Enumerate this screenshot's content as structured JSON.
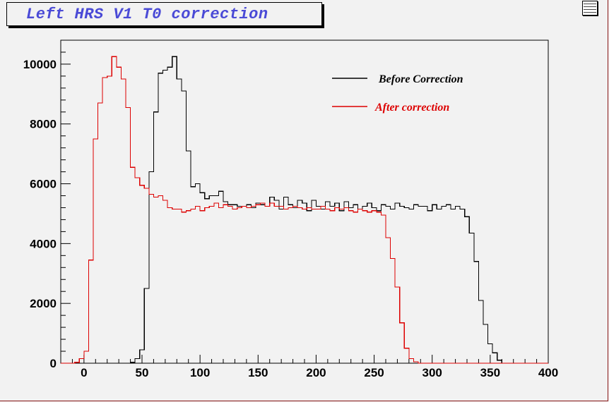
{
  "title": "Left HRS V1 T0 correction",
  "chart_data": {
    "type": "line",
    "title": "Left HRS V1 T0 correction",
    "xlabel": "",
    "ylabel": "",
    "xlim": [
      -20,
      400
    ],
    "ylim": [
      0,
      10800
    ],
    "x_ticks": [
      0,
      50,
      100,
      150,
      200,
      250,
      300,
      350,
      400
    ],
    "y_ticks": [
      0,
      2000,
      4000,
      6000,
      8000,
      10000
    ],
    "x_tick_labels": [
      "0",
      "50",
      "100",
      "150",
      "200",
      "250",
      "300",
      "350",
      "400"
    ],
    "y_tick_labels": [
      "0",
      "2000",
      "4000",
      "6000",
      "8000",
      "10000"
    ],
    "grid": false,
    "legend_position": "top-right",
    "bin_width": 4,
    "series": [
      {
        "name": "Before Correction",
        "color": "#000000",
        "x": [
          0,
          4,
          8,
          12,
          16,
          20,
          24,
          28,
          32,
          36,
          40,
          44,
          48,
          52,
          56,
          60,
          64,
          68,
          72,
          76,
          80,
          84,
          88,
          92,
          96,
          100,
          104,
          108,
          112,
          116,
          120,
          124,
          128,
          132,
          136,
          140,
          144,
          148,
          152,
          156,
          160,
          164,
          168,
          172,
          176,
          180,
          184,
          188,
          192,
          196,
          200,
          204,
          208,
          212,
          216,
          220,
          224,
          228,
          232,
          236,
          240,
          244,
          248,
          252,
          256,
          260,
          264,
          268,
          272,
          276,
          280,
          284,
          288,
          292,
          296,
          300,
          304,
          308,
          312,
          316,
          320,
          324,
          328,
          332,
          336,
          340,
          344,
          348,
          352,
          356,
          360,
          364,
          368,
          372,
          376,
          380,
          384,
          388,
          392,
          396
        ],
        "values": [
          0,
          0,
          0,
          0,
          0,
          0,
          0,
          0,
          0,
          0,
          30,
          150,
          450,
          2500,
          6400,
          8400,
          9700,
          9800,
          9900,
          10250,
          9500,
          9100,
          7100,
          5900,
          6000,
          5700,
          5500,
          5600,
          5600,
          5750,
          5400,
          5300,
          5300,
          5250,
          5250,
          5300,
          5200,
          5350,
          5300,
          5250,
          5550,
          5450,
          5150,
          5550,
          5300,
          5200,
          5450,
          5350,
          5100,
          5450,
          5250,
          5150,
          5400,
          5250,
          5350,
          5100,
          5400,
          5200,
          5300,
          5150,
          5250,
          5350,
          5200,
          5100,
          5300,
          5250,
          5150,
          5350,
          5250,
          5200,
          5150,
          5300,
          5250,
          5250,
          5100,
          5300,
          5150,
          5250,
          5300,
          5150,
          5250,
          5150,
          4900,
          4350,
          3400,
          2100,
          1300,
          650,
          350,
          100,
          0,
          0,
          0,
          0,
          0,
          0,
          0,
          0,
          0,
          0
        ]
      },
      {
        "name": "After correction",
        "color": "#dd0000",
        "x": [
          -20,
          -16,
          -12,
          -8,
          -4,
          0,
          4,
          8,
          12,
          16,
          20,
          24,
          28,
          32,
          36,
          40,
          44,
          48,
          52,
          56,
          60,
          64,
          68,
          72,
          76,
          80,
          84,
          88,
          92,
          96,
          100,
          104,
          108,
          112,
          116,
          120,
          124,
          128,
          132,
          136,
          140,
          144,
          148,
          152,
          156,
          160,
          164,
          168,
          172,
          176,
          180,
          184,
          188,
          192,
          196,
          200,
          204,
          208,
          212,
          216,
          220,
          224,
          228,
          232,
          236,
          240,
          244,
          248,
          252,
          256,
          260,
          264,
          268,
          272,
          276,
          280,
          284,
          288,
          292,
          296,
          300,
          304,
          308,
          312,
          316,
          320,
          324,
          328,
          332,
          336,
          340,
          344,
          348,
          352,
          356,
          360,
          364,
          368,
          372,
          376,
          380,
          384,
          388,
          392,
          396
        ],
        "values": [
          0,
          0,
          0,
          30,
          150,
          400,
          3450,
          7500,
          8700,
          9550,
          9600,
          10250,
          9900,
          9500,
          8550,
          6550,
          6200,
          5950,
          5850,
          5650,
          5550,
          5600,
          5450,
          5200,
          5150,
          5150,
          5050,
          5100,
          5150,
          5250,
          5100,
          5200,
          5250,
          5350,
          5200,
          5300,
          5250,
          5150,
          5200,
          5250,
          5200,
          5250,
          5300,
          5350,
          5250,
          5350,
          5250,
          5250,
          5150,
          5200,
          5250,
          5200,
          5150,
          5200,
          5150,
          5150,
          5250,
          5150,
          5100,
          5200,
          5150,
          5200,
          5100,
          5050,
          5150,
          5100,
          5050,
          5100,
          5050,
          4950,
          4200,
          3500,
          2550,
          1350,
          500,
          150,
          50,
          0,
          0,
          0,
          0,
          0,
          0,
          0,
          0,
          0,
          0,
          0,
          0,
          0,
          0,
          0,
          0,
          0,
          0,
          0,
          0,
          0,
          0,
          0,
          0,
          0,
          0,
          0,
          0
        ]
      }
    ]
  }
}
